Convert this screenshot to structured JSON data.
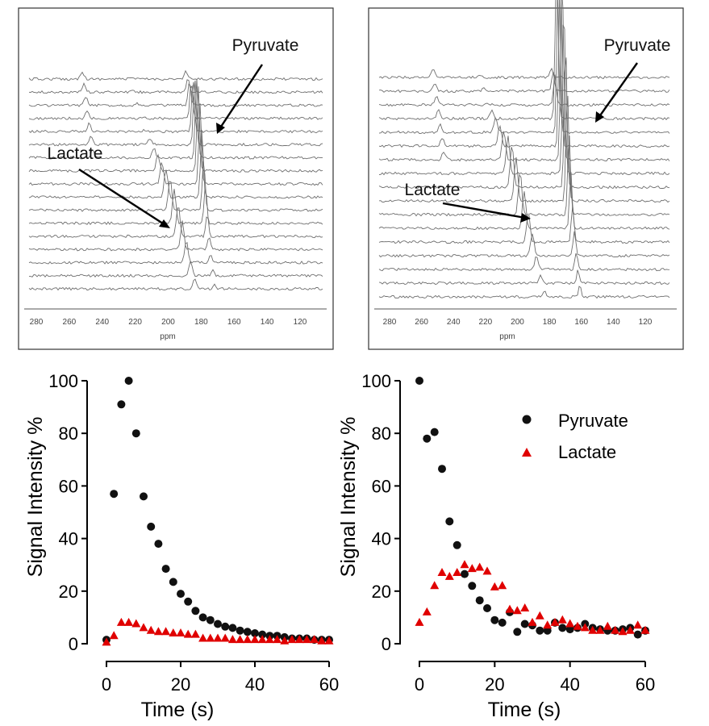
{
  "colors": {
    "pyruvate": "#111111",
    "lactate": "#e00000",
    "trace": "#6e6e6e"
  },
  "spectra": [
    {
      "id": "left",
      "xlabel": "ppm",
      "ticks": [
        "280",
        "260",
        "240",
        "220",
        "200",
        "180",
        "160",
        "140",
        "120"
      ],
      "labels": {
        "pyruvate": "Pyruvate",
        "lactate": "Lactate"
      },
      "n_traces": 17
    },
    {
      "id": "right",
      "xlabel": "ppm",
      "ticks": [
        "280",
        "260",
        "240",
        "220",
        "200",
        "180",
        "160",
        "140",
        "120"
      ],
      "labels": {
        "pyruvate": "Pyruvate",
        "lactate": "Lactate"
      },
      "n_traces": 17
    }
  ],
  "legend": {
    "pyruvate": "Pyruvate",
    "lactate": "Lactate"
  },
  "chart_data": [
    {
      "type": "scatter",
      "title": "",
      "xlabel": "Time (s)",
      "ylabel": "Signal Intensity %",
      "xlim": [
        0,
        60
      ],
      "ylim": [
        0,
        100
      ],
      "xticks": [
        0,
        20,
        40,
        60
      ],
      "yticks": [
        0,
        20,
        40,
        60,
        80,
        100
      ],
      "series": [
        {
          "name": "Pyruvate",
          "marker": "circle",
          "x": [
            0,
            2,
            4,
            6,
            8,
            10,
            12,
            14,
            16,
            18,
            20,
            22,
            24,
            26,
            28,
            30,
            32,
            34,
            36,
            38,
            40,
            42,
            44,
            46,
            48,
            50,
            52,
            54,
            56,
            58,
            60
          ],
          "y": [
            1.5,
            57,
            91,
            100,
            80,
            56,
            44.5,
            38,
            28.5,
            23.5,
            19,
            16,
            12.5,
            10,
            9,
            7.5,
            6.5,
            6,
            5,
            4.5,
            4,
            3.5,
            3,
            3,
            2.5,
            2,
            2,
            2,
            1.5,
            1.5,
            1.5
          ]
        },
        {
          "name": "Lactate",
          "marker": "triangle",
          "x": [
            0,
            2,
            4,
            6,
            8,
            10,
            12,
            14,
            16,
            18,
            20,
            22,
            24,
            26,
            28,
            30,
            32,
            34,
            36,
            38,
            40,
            42,
            44,
            46,
            48,
            50,
            52,
            54,
            56,
            58,
            60
          ],
          "y": [
            0.5,
            3,
            8,
            8,
            7.5,
            6,
            5,
            4.5,
            4.5,
            4,
            4,
            3.5,
            3.5,
            2,
            2,
            2,
            2,
            1.5,
            1.5,
            1.5,
            1.5,
            1.5,
            1.5,
            1.5,
            1,
            1.5,
            1.5,
            1.5,
            1.5,
            1,
            1
          ]
        }
      ]
    },
    {
      "type": "scatter",
      "title": "",
      "xlabel": "Time (s)",
      "ylabel": "Signal Intensity %",
      "xlim": [
        0,
        60
      ],
      "ylim": [
        0,
        100
      ],
      "xticks": [
        0,
        20,
        40,
        60
      ],
      "yticks": [
        0,
        20,
        40,
        60,
        80,
        100
      ],
      "legend_position": "top-right",
      "series": [
        {
          "name": "Pyruvate",
          "marker": "circle",
          "x": [
            0,
            2,
            4,
            6,
            8,
            10,
            12,
            14,
            16,
            18,
            20,
            22,
            24,
            26,
            28,
            30,
            32,
            34,
            36,
            38,
            40,
            42,
            44,
            46,
            48,
            50,
            52,
            54,
            56,
            58,
            60
          ],
          "y": [
            100,
            78,
            80.5,
            66.5,
            46.5,
            37.5,
            26.5,
            22,
            16.5,
            13.5,
            9,
            8,
            12,
            4.5,
            7.5,
            7,
            5,
            5,
            8,
            6,
            5.5,
            6,
            7.5,
            6,
            5.5,
            5,
            5,
            5.5,
            6,
            3.5,
            5
          ]
        },
        {
          "name": "Lactate",
          "marker": "triangle",
          "x": [
            0,
            2,
            4,
            6,
            8,
            10,
            12,
            14,
            16,
            18,
            20,
            22,
            24,
            26,
            28,
            30,
            32,
            34,
            36,
            38,
            40,
            42,
            44,
            46,
            48,
            50,
            52,
            54,
            56,
            58,
            60
          ],
          "y": [
            8,
            12,
            22,
            27,
            25.5,
            27,
            30,
            28.5,
            29,
            27.5,
            21.5,
            22,
            13,
            12.5,
            13.5,
            8,
            10.5,
            7,
            8,
            9,
            7.5,
            6.5,
            6,
            5,
            5,
            6.5,
            5,
            4.5,
            5,
            7,
            5
          ]
        }
      ]
    }
  ]
}
